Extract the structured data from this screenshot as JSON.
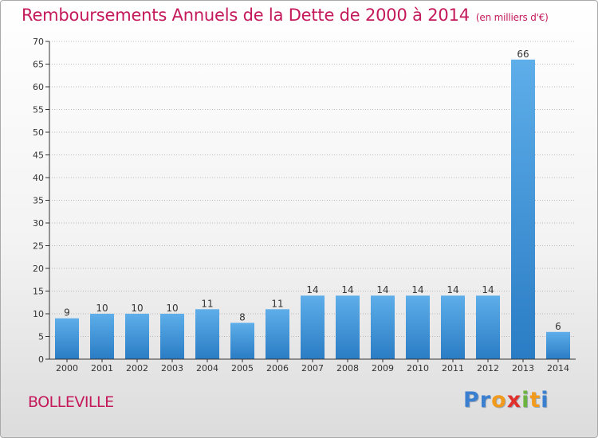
{
  "chart_data": {
    "type": "bar",
    "title": "Remboursements Annuels de la Dette de 2000 à 2014",
    "subtitle": "(en milliers d'€)",
    "categories": [
      "2000",
      "2001",
      "2002",
      "2003",
      "2004",
      "2005",
      "2006",
      "2007",
      "2008",
      "2009",
      "2010",
      "2011",
      "2012",
      "2013",
      "2014"
    ],
    "values": [
      9,
      10,
      10,
      10,
      11,
      8,
      11,
      14,
      14,
      14,
      14,
      14,
      14,
      66,
      6
    ],
    "ylim": [
      0,
      70
    ],
    "yticks": [
      0,
      5,
      10,
      15,
      20,
      25,
      30,
      35,
      40,
      45,
      50,
      55,
      60,
      65,
      70
    ],
    "xlabel": "",
    "ylabel": "",
    "grid": true,
    "bar_color": "#3d8fd6"
  },
  "commune": "BOLLEVILLE",
  "logo": {
    "letters": [
      "P",
      "r",
      "o",
      "x",
      "i",
      "t",
      "i"
    ],
    "colors": [
      "#3a7fd0",
      "#3a7fd0",
      "#f29a1c",
      "#e0312d",
      "#6cb33f",
      "#f29a1c",
      "#3a7fd0"
    ]
  },
  "colors": {
    "title": "#c4195a",
    "grid": "#b9b9b9",
    "axis": "#333333"
  }
}
